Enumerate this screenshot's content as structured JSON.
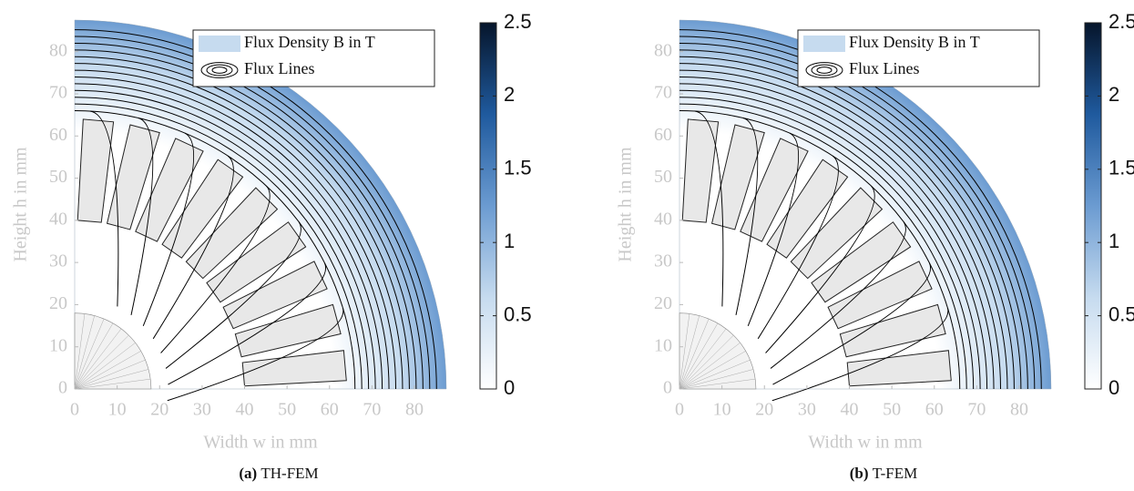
{
  "chart_data": [
    {
      "type": "field",
      "xlabel": "Width w in mm",
      "ylabel": "Height h in mm",
      "xlim": [
        0,
        87.5
      ],
      "ylim": [
        0,
        87.5
      ],
      "xticks": [
        0,
        10,
        20,
        30,
        40,
        50,
        60,
        70,
        80
      ],
      "yticks": [
        0,
        10,
        20,
        30,
        40,
        50,
        60,
        70,
        80
      ],
      "clim": [
        0,
        2.5
      ],
      "cticks": [
        0,
        0.5,
        1,
        1.5,
        2,
        2.5
      ],
      "colormap": [
        "#ffffff",
        "#c6dbef",
        "#6b9bd1",
        "#1f5a9e",
        "#06152b"
      ],
      "legend": [
        {
          "name": "Flux Density B in T",
          "color": "#c6dbef"
        },
        {
          "name": "Flux Lines",
          "color": "#000000"
        }
      ],
      "caption_label": "(a)",
      "caption": "TH-FEM"
    },
    {
      "type": "field",
      "xlabel": "Width w in mm",
      "ylabel": "Height h in mm",
      "xlim": [
        0,
        87.5
      ],
      "ylim": [
        0,
        87.5
      ],
      "xticks": [
        0,
        10,
        20,
        30,
        40,
        50,
        60,
        70,
        80
      ],
      "yticks": [
        0,
        10,
        20,
        30,
        40,
        50,
        60,
        70,
        80
      ],
      "clim": [
        0,
        2.5
      ],
      "cticks": [
        0,
        0.5,
        1,
        1.5,
        2,
        2.5
      ],
      "colormap": [
        "#ffffff",
        "#c6dbef",
        "#6b9bd1",
        "#1f5a9e",
        "#06152b"
      ],
      "legend": [
        {
          "name": "Flux Density B in T",
          "color": "#c6dbef"
        },
        {
          "name": "Flux Lines",
          "color": "#000000"
        }
      ],
      "caption_label": "(b)",
      "caption": "T-FEM"
    }
  ]
}
